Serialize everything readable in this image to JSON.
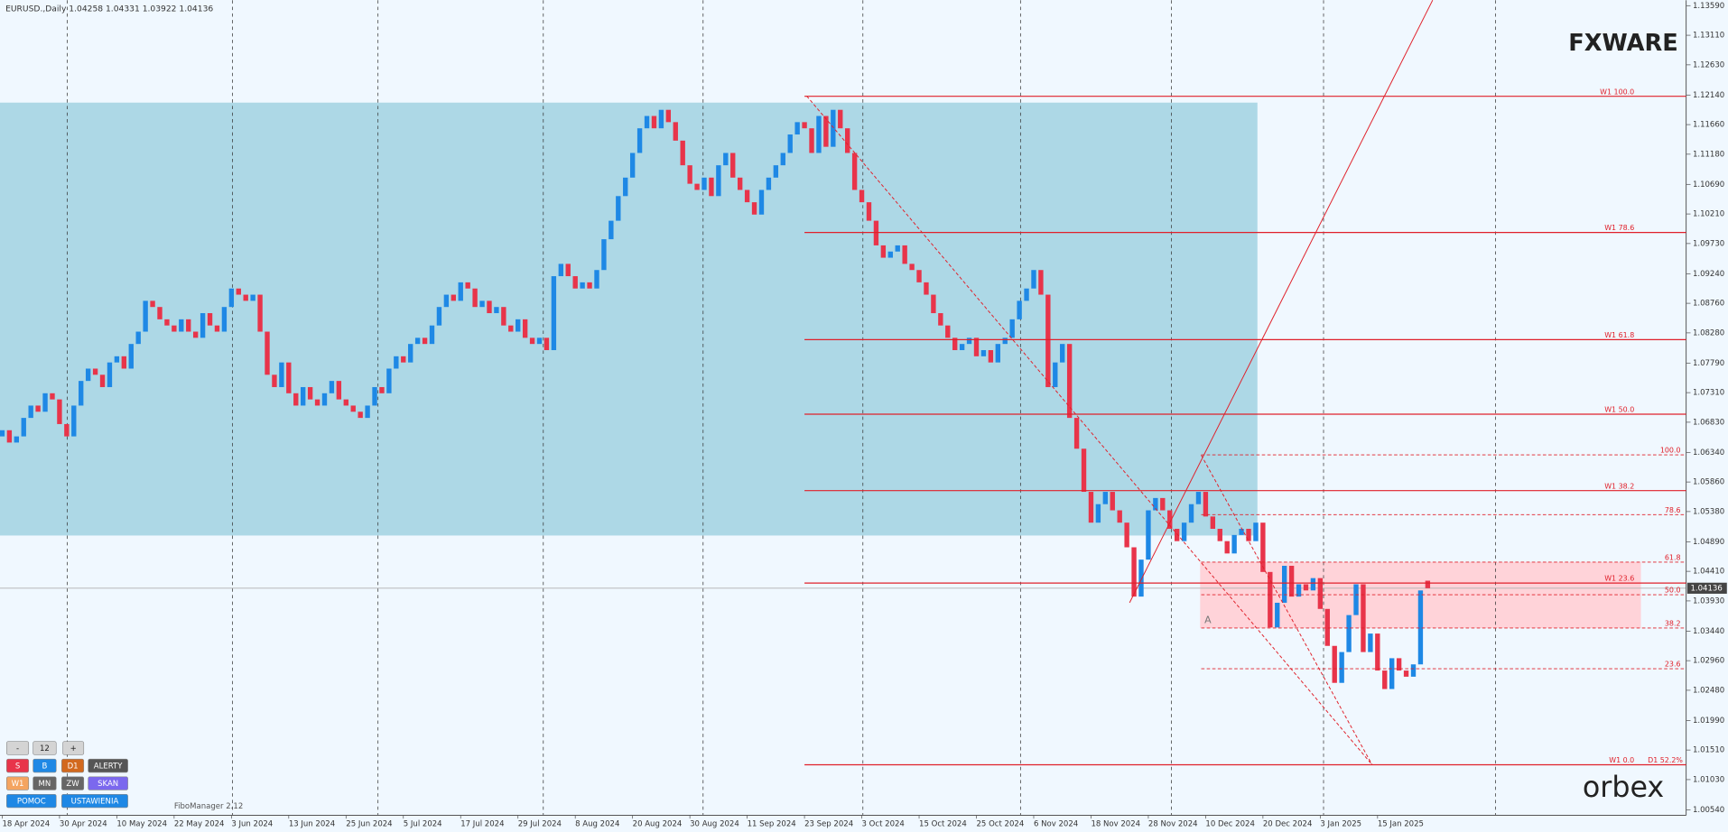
{
  "chart_data": {
    "type": "candlestick",
    "title": "EURUSD.,Daily  1.04258 1.04331 1.03922 1.04136",
    "up_color": "#1e88e5",
    "down_color": "#e8344a",
    "xticks": [
      "18 Apr 2024",
      "30 Apr 2024",
      "10 May 2024",
      "22 May 2024",
      "3 Jun 2024",
      "13 Jun 2024",
      "25 Jun 2024",
      "5 Jul 2024",
      "17 Jul 2024",
      "29 Jul 2024",
      "8 Aug 2024",
      "20 Aug 2024",
      "30 Aug 2024",
      "11 Sep 2024",
      "23 Sep 2024",
      "3 Oct 2024",
      "15 Oct 2024",
      "25 Oct 2024",
      "6 Nov 2024",
      "18 Nov 2024",
      "28 Nov 2024",
      "10 Dec 2024",
      "20 Dec 2024",
      "3 Jan 2025",
      "15 Jan 2025"
    ],
    "ylim": [
      1.0054,
      1.1359
    ],
    "yticks": [
      {
        "value": 1.1359,
        "label": "1.13590"
      },
      {
        "value": 1.1311,
        "label": "1.13110"
      },
      {
        "value": 1.1263,
        "label": "1.12630"
      },
      {
        "value": 1.1214,
        "label": "1.12140"
      },
      {
        "value": 1.1166,
        "label": "1.11660"
      },
      {
        "value": 1.1118,
        "label": "1.11180"
      },
      {
        "value": 1.1069,
        "label": "1.10690"
      },
      {
        "value": 1.1021,
        "label": "1.10210"
      },
      {
        "value": 1.0973,
        "label": "1.09730"
      },
      {
        "value": 1.0924,
        "label": "1.09240"
      },
      {
        "value": 1.0876,
        "label": "1.08760"
      },
      {
        "value": 1.0828,
        "label": "1.08280"
      },
      {
        "value": 1.0779,
        "label": "1.07790"
      },
      {
        "value": 1.0731,
        "label": "1.07310"
      },
      {
        "value": 1.0683,
        "label": "1.06830"
      },
      {
        "value": 1.0634,
        "label": "1.06340"
      },
      {
        "value": 1.0586,
        "label": "1.05860"
      },
      {
        "value": 1.0538,
        "label": "1.05380"
      },
      {
        "value": 1.0489,
        "label": "1.04890"
      },
      {
        "value": 1.0441,
        "label": "1.04410"
      },
      {
        "value": 1.0393,
        "label": "1.03930"
      },
      {
        "value": 1.0344,
        "label": "1.03440"
      },
      {
        "value": 1.0296,
        "label": "1.02960"
      },
      {
        "value": 1.0248,
        "label": "1.02480"
      },
      {
        "value": 1.0199,
        "label": "1.01990"
      },
      {
        "value": 1.0151,
        "label": "1.01510"
      },
      {
        "value": 1.0103,
        "label": "1.01030"
      },
      {
        "value": 1.0054,
        "label": "1.00540"
      }
    ],
    "open": [
      1.066,
      1.067,
      1.065,
      1.066,
      1.069,
      1.071,
      1.07,
      1.073,
      1.072,
      1.068,
      1.066,
      1.071,
      1.075,
      1.077,
      1.076,
      1.074,
      1.078,
      1.079,
      1.077,
      1.081,
      1.083,
      1.088,
      1.087,
      1.085,
      1.084,
      1.083,
      1.085,
      1.083,
      1.082,
      1.086,
      1.084,
      1.083,
      1.087,
      1.09,
      1.089,
      1.088,
      1.089,
      1.083,
      1.076,
      1.074,
      1.078,
      1.073,
      1.071,
      1.074,
      1.072,
      1.071,
      1.073,
      1.075,
      1.072,
      1.071,
      1.07,
      1.069,
      1.071,
      1.074,
      1.073,
      1.077,
      1.079,
      1.078,
      1.081,
      1.082,
      1.081,
      1.084,
      1.087,
      1.089,
      1.088,
      1.091,
      1.09,
      1.087,
      1.088,
      1.086,
      1.087,
      1.084,
      1.083,
      1.085,
      1.082,
      1.081,
      1.082,
      1.08,
      1.092,
      1.094,
      1.092,
      1.09,
      1.091,
      1.09,
      1.093,
      1.098,
      1.101,
      1.105,
      1.108,
      1.112,
      1.116,
      1.118,
      1.116,
      1.119,
      1.117,
      1.114,
      1.11,
      1.107,
      1.106,
      1.108,
      1.105,
      1.11,
      1.112,
      1.108,
      1.106,
      1.104,
      1.102,
      1.106,
      1.108,
      1.11,
      1.112,
      1.115,
      1.117,
      1.116,
      1.112,
      1.118,
      1.113,
      1.119,
      1.116,
      1.112,
      1.106,
      1.104,
      1.101,
      1.097,
      1.095,
      1.096,
      1.097,
      1.094,
      1.093,
      1.091,
      1.089,
      1.086,
      1.084,
      1.082,
      1.08,
      1.081,
      1.082,
      1.079,
      1.08,
      1.078,
      1.081,
      1.082,
      1.085,
      1.088,
      1.09,
      1.093,
      1.089,
      1.074,
      1.078,
      1.081,
      1.069,
      1.064,
      1.057,
      1.052,
      1.055,
      1.057,
      1.054,
      1.052,
      1.048,
      1.04,
      1.046,
      1.054,
      1.056,
      1.054,
      1.051,
      1.049,
      1.052,
      1.055,
      1.057,
      1.053,
      1.051,
      1.049,
      1.047,
      1.05,
      1.051,
      1.049,
      1.052,
      1.044,
      1.035,
      1.039,
      1.045,
      1.04,
      1.042,
      1.041,
      1.043,
      1.038,
      1.032,
      1.026,
      1.031,
      1.037,
      1.042,
      1.031,
      1.034,
      1.028,
      1.025,
      1.03,
      1.028,
      1.027,
      1.029,
      1.04258
    ],
    "close": [
      1.067,
      1.065,
      1.066,
      1.069,
      1.071,
      1.07,
      1.073,
      1.072,
      1.068,
      1.066,
      1.071,
      1.075,
      1.077,
      1.076,
      1.074,
      1.078,
      1.079,
      1.077,
      1.081,
      1.083,
      1.088,
      1.087,
      1.085,
      1.084,
      1.083,
      1.085,
      1.083,
      1.082,
      1.086,
      1.084,
      1.083,
      1.087,
      1.09,
      1.089,
      1.088,
      1.089,
      1.083,
      1.076,
      1.074,
      1.078,
      1.073,
      1.071,
      1.074,
      1.072,
      1.071,
      1.073,
      1.075,
      1.072,
      1.071,
      1.07,
      1.069,
      1.071,
      1.074,
      1.073,
      1.077,
      1.079,
      1.078,
      1.081,
      1.082,
      1.081,
      1.084,
      1.087,
      1.089,
      1.088,
      1.091,
      1.09,
      1.087,
      1.088,
      1.086,
      1.087,
      1.084,
      1.083,
      1.085,
      1.082,
      1.081,
      1.082,
      1.08,
      1.092,
      1.094,
      1.092,
      1.09,
      1.091,
      1.09,
      1.093,
      1.098,
      1.101,
      1.105,
      1.108,
      1.112,
      1.116,
      1.118,
      1.116,
      1.119,
      1.117,
      1.114,
      1.11,
      1.107,
      1.106,
      1.108,
      1.105,
      1.11,
      1.112,
      1.108,
      1.106,
      1.104,
      1.102,
      1.106,
      1.108,
      1.11,
      1.112,
      1.115,
      1.117,
      1.116,
      1.112,
      1.118,
      1.113,
      1.119,
      1.116,
      1.112,
      1.106,
      1.104,
      1.101,
      1.097,
      1.095,
      1.096,
      1.097,
      1.094,
      1.093,
      1.091,
      1.089,
      1.086,
      1.084,
      1.082,
      1.08,
      1.081,
      1.082,
      1.079,
      1.08,
      1.078,
      1.081,
      1.082,
      1.085,
      1.088,
      1.09,
      1.093,
      1.089,
      1.074,
      1.078,
      1.081,
      1.069,
      1.064,
      1.057,
      1.052,
      1.055,
      1.057,
      1.054,
      1.052,
      1.048,
      1.04,
      1.046,
      1.054,
      1.056,
      1.054,
      1.051,
      1.049,
      1.052,
      1.055,
      1.057,
      1.053,
      1.051,
      1.049,
      1.047,
      1.05,
      1.051,
      1.049,
      1.052,
      1.044,
      1.035,
      1.039,
      1.045,
      1.04,
      1.042,
      1.041,
      1.043,
      1.038,
      1.032,
      1.026,
      1.031,
      1.037,
      1.042,
      1.031,
      1.034,
      1.028,
      1.025,
      1.03,
      1.028,
      1.027,
      1.029,
      1.041,
      1.04136
    ],
    "current_price": {
      "value": 1.04136,
      "label": "1.04136"
    },
    "levels": [
      {
        "label": "W1 100.0",
        "value": 1.1212
      },
      {
        "label": "W1 78.6",
        "value": 1.0991
      },
      {
        "label": "W1 61.8",
        "value": 1.0817
      },
      {
        "label": "W1 50.0",
        "value": 1.0696
      },
      {
        "label": "W1 38.2",
        "value": 1.0572
      },
      {
        "label": "W1 23.6",
        "value": 1.0422
      },
      {
        "label": "W1 0.0",
        "value": 1.0127,
        "extra": "D1 52.2%"
      }
    ],
    "fib_levels": [
      {
        "label": "100.0",
        "value": 1.063
      },
      {
        "label": "78.6",
        "value": 1.0533
      },
      {
        "label": "61.8",
        "value": 1.0456
      },
      {
        "label": "50.0",
        "value": 1.0403
      },
      {
        "label": "38.2",
        "value": 1.0349
      },
      {
        "label": "23.6",
        "value": 1.0283
      }
    ],
    "marker": "A"
  },
  "ui": {
    "logo_top": "FXWARE",
    "logo_bottom": "orbex",
    "indicator": "FiboManager 2.12",
    "buttons": [
      [
        {
          "label": "-",
          "color": "#d4d4d4"
        },
        {
          "label": "12",
          "color": "#d4d4d4"
        },
        {
          "label": "+",
          "color": "#d4d4d4"
        }
      ],
      [
        {
          "label": "S",
          "color": "#e8344a"
        },
        {
          "label": "B",
          "color": "#1e88e5"
        },
        {
          "label": "D1",
          "color": "#d2691e"
        },
        {
          "label": "ALERTY",
          "color": "#555555"
        }
      ],
      [
        {
          "label": "W1",
          "color": "#f4a460"
        },
        {
          "label": "MN",
          "color": "#666666"
        },
        {
          "label": "ZW",
          "color": "#666666"
        },
        {
          "label": "SKAN",
          "color": "#7b68ee"
        }
      ],
      [
        {
          "label": "POMOC",
          "color": "#1e88e5"
        },
        {
          "label": "USTAWIENIA",
          "color": "#1e88e5"
        }
      ]
    ]
  }
}
